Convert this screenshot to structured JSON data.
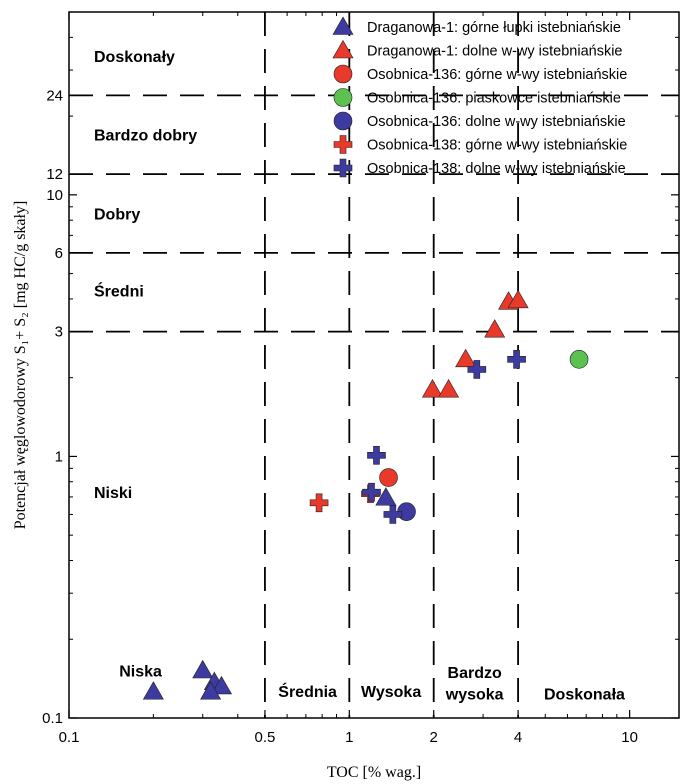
{
  "chart_data": {
    "type": "scatter",
    "x_scale": "log",
    "y_scale": "log",
    "xlim": [
      0.1,
      15
    ],
    "ylim": [
      0.1,
      50
    ],
    "xlabel": "TOC [% wag.]",
    "ylabel": "Potencjał węglowodorowy S₁+ S₂ [mg HC/g skały]",
    "x_ticks": [
      {
        "value": 0.1,
        "label": "0.1"
      },
      {
        "value": 0.5,
        "label": "0.5"
      },
      {
        "value": 1,
        "label": "1"
      },
      {
        "value": 2,
        "label": "2"
      },
      {
        "value": 4,
        "label": "4"
      },
      {
        "value": 10,
        "label": "10"
      }
    ],
    "y_ticks": [
      {
        "value": 0.1,
        "label": "0.1"
      },
      {
        "value": 1,
        "label": "1"
      },
      {
        "value": 3,
        "label": "3"
      },
      {
        "value": 6,
        "label": "6"
      },
      {
        "value": 10,
        "label": "10"
      },
      {
        "value": 12,
        "label": "12"
      },
      {
        "value": 24,
        "label": "24"
      }
    ],
    "x_thresholds": [
      0.5,
      1,
      2,
      4
    ],
    "y_thresholds": [
      3,
      6,
      12,
      24
    ],
    "y_zone_labels": [
      {
        "label": "Doskonały",
        "y": 34
      },
      {
        "label": "Bardzo dobry",
        "y": 17
      },
      {
        "label": "Dobry",
        "y": 8.5
      },
      {
        "label": "Średni",
        "y": 4.3
      },
      {
        "label": "Niski",
        "y": 0.73
      }
    ],
    "x_zone_labels": [
      {
        "label": "Niska",
        "x": 0.18,
        "y": 0.152
      },
      {
        "label": "Średnia",
        "x": 0.71,
        "y": 0.127
      },
      {
        "label": "Wysoka",
        "x": 1.41,
        "y": 0.127
      },
      {
        "label": "Bardzo",
        "x": 2.8,
        "y": 0.15
      },
      {
        "label": "wysoka",
        "x": 2.8,
        "y": 0.124
      },
      {
        "label": "Doskonała",
        "x": 6.9,
        "y": 0.124
      }
    ],
    "series": [
      {
        "name": "Draganowa-1: górne łupki istebniańskie",
        "marker": "triangle",
        "color": "#3d3aa0",
        "points": [
          [
            0.2,
            0.126
          ],
          [
            0.3,
            0.152
          ],
          [
            0.33,
            0.137
          ],
          [
            0.35,
            0.132
          ],
          [
            0.32,
            0.126
          ],
          [
            1.35,
            0.695
          ]
        ]
      },
      {
        "name": "Draganowa-1: dolne w-wy istebniańskie",
        "marker": "triangle",
        "color": "#e8392a",
        "points": [
          [
            1.98,
            1.8
          ],
          [
            2.26,
            1.8
          ],
          [
            2.6,
            2.35
          ],
          [
            3.3,
            3.05
          ],
          [
            3.7,
            3.9
          ],
          [
            4.0,
            3.95
          ]
        ]
      },
      {
        "name": "Osobnica-136: górne w-wy istebniańskie",
        "marker": "circle",
        "color": "#e8392a",
        "points": [
          [
            1.38,
            0.83
          ]
        ]
      },
      {
        "name": "Osobnica-136: piaskowce istebniańskie",
        "marker": "circle",
        "color": "#5cc24f",
        "points": [
          [
            6.6,
            2.35
          ]
        ]
      },
      {
        "name": "Osobnica-136: dolne w-wy istebniańskie",
        "marker": "circle",
        "color": "#3d3aa0",
        "points": [
          [
            1.6,
            0.615
          ]
        ]
      },
      {
        "name": "Osobnica-138: górne w-wy istebniańskie",
        "marker": "plus",
        "color": "#e8392a",
        "points": [
          [
            0.78,
            0.665
          ],
          [
            1.19,
            0.72
          ]
        ]
      },
      {
        "name": "Osobnica-138: dolne w-wy istebniańskie",
        "marker": "plus",
        "color": "#3d3aa0",
        "points": [
          [
            1.25,
            1.01
          ],
          [
            1.2,
            0.73
          ],
          [
            1.43,
            0.6
          ],
          [
            2.85,
            2.15
          ],
          [
            3.95,
            2.35
          ]
        ]
      }
    ]
  }
}
